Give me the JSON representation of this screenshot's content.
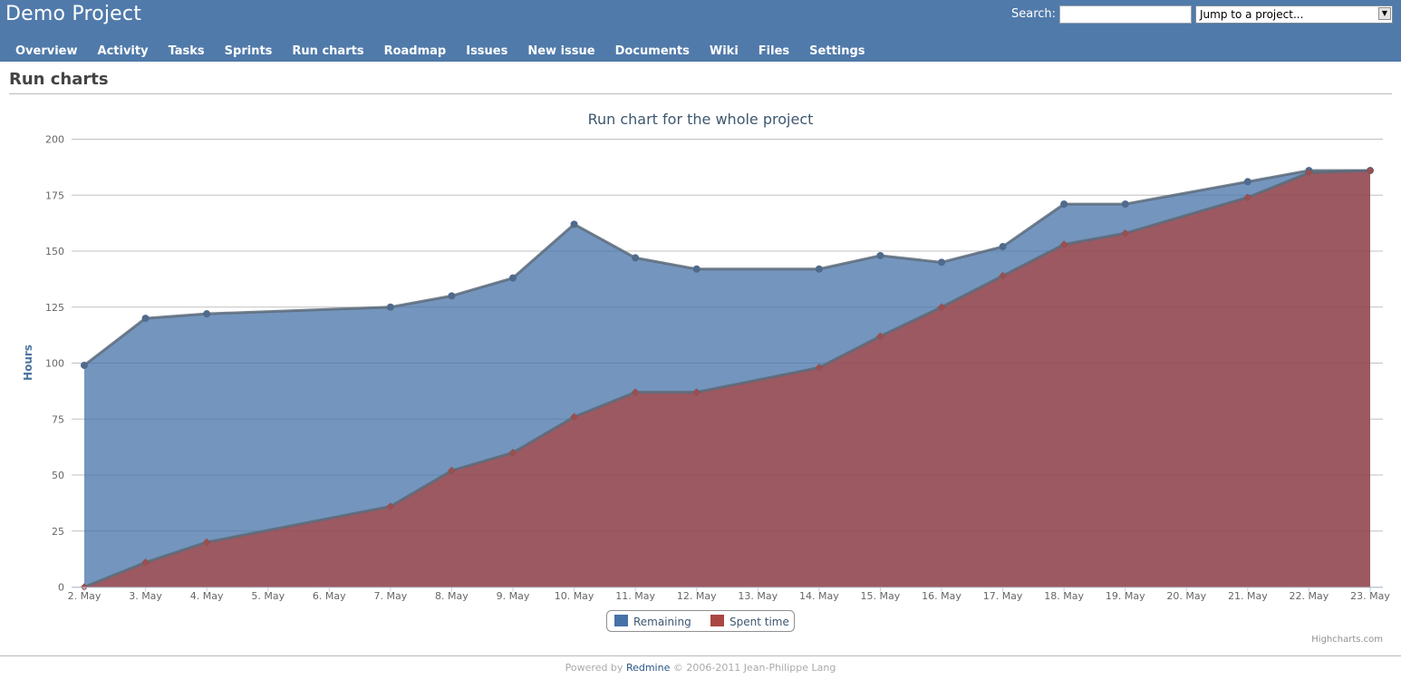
{
  "header": {
    "project_title": "Demo Project",
    "search_label": "Search:",
    "search_value": "",
    "project_jump": "Jump to a project...",
    "background_color": "#507aaa"
  },
  "main_menu": [
    {
      "label": "Overview"
    },
    {
      "label": "Activity"
    },
    {
      "label": "Tasks"
    },
    {
      "label": "Sprints"
    },
    {
      "label": "Run charts"
    },
    {
      "label": "Roadmap"
    },
    {
      "label": "Issues"
    },
    {
      "label": "New issue"
    },
    {
      "label": "Documents"
    },
    {
      "label": "Wiki"
    },
    {
      "label": "Files"
    },
    {
      "label": "Settings"
    }
  ],
  "content": {
    "page_heading": "Run charts"
  },
  "chart_data": {
    "type": "area",
    "title": "Run chart for the whole project",
    "ylabel": "Hours",
    "xlabel": "",
    "ylim": [
      0,
      200
    ],
    "yticks": [
      0,
      25,
      50,
      75,
      100,
      125,
      150,
      175,
      200
    ],
    "grid": true,
    "legend_position": "bottom-center",
    "credits": "Highcharts.com",
    "categories": [
      "2. May",
      "3. May",
      "4. May",
      "5. May",
      "6. May",
      "7. May",
      "8. May",
      "9. May",
      "10. May",
      "11. May",
      "12. May",
      "13. May",
      "14. May",
      "15. May",
      "16. May",
      "17. May",
      "18. May",
      "19. May",
      "20. May",
      "21. May",
      "22. May",
      "23. May"
    ],
    "series": [
      {
        "name": "Remaining",
        "color": "#4572a7",
        "marker": "circle",
        "points": [
          [
            0,
            99
          ],
          [
            1,
            120
          ],
          [
            2,
            122
          ],
          [
            5,
            125
          ],
          [
            6,
            130
          ],
          [
            7,
            138
          ],
          [
            8,
            162
          ],
          [
            9,
            147
          ],
          [
            10,
            142
          ],
          [
            12,
            142
          ],
          [
            13,
            148
          ],
          [
            14,
            145
          ],
          [
            15,
            152
          ],
          [
            16,
            171
          ],
          [
            17,
            171
          ],
          [
            19,
            181
          ],
          [
            20,
            186
          ],
          [
            21,
            186
          ]
        ]
      },
      {
        "name": "Spent time",
        "color": "#aa4643",
        "marker": "diamond",
        "points": [
          [
            0,
            0
          ],
          [
            1,
            11
          ],
          [
            2,
            20
          ],
          [
            5,
            36
          ],
          [
            6,
            52
          ],
          [
            7,
            60
          ],
          [
            8,
            76
          ],
          [
            9,
            87
          ],
          [
            10,
            87
          ],
          [
            12,
            98
          ],
          [
            13,
            112
          ],
          [
            14,
            125
          ],
          [
            15,
            139
          ],
          [
            16,
            153
          ],
          [
            17,
            158
          ],
          [
            19,
            174
          ],
          [
            20,
            185
          ],
          [
            21,
            186
          ]
        ]
      }
    ]
  },
  "footer": {
    "prefix": "Powered by ",
    "link": "Redmine",
    "suffix": " © 2006-2011 Jean-Philippe Lang"
  }
}
